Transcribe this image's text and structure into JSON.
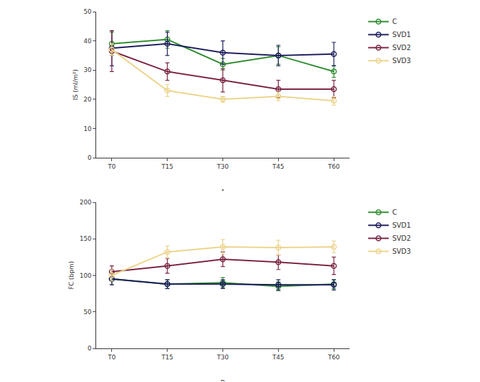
{
  "chart_data": [
    {
      "type": "line",
      "title": "A",
      "y_label": "IS (ml/m²)",
      "categories": [
        "T0",
        "T15",
        "T30",
        "T45",
        "T60"
      ],
      "ylim": [
        0,
        50
      ],
      "yticks": [
        0,
        10,
        20,
        30,
        40,
        50
      ],
      "grid": false,
      "legend": "right",
      "marker": "circle-open",
      "series": [
        {
          "name": "C",
          "color": "#2e8b2e",
          "values": [
            39,
            40.5,
            32,
            35,
            29.5
          ],
          "errors": [
            4,
            3,
            2,
            3,
            2
          ]
        },
        {
          "name": "SVD1",
          "color": "#1c1c5c",
          "values": [
            37.5,
            39,
            36,
            35,
            35.5
          ],
          "errors": [
            6,
            4,
            4,
            3.5,
            4
          ]
        },
        {
          "name": "SVD2",
          "color": "#7a2242",
          "values": [
            36.5,
            29.5,
            26.5,
            23.5,
            23.5
          ],
          "errors": [
            7,
            3,
            4,
            3,
            3
          ]
        },
        {
          "name": "SVD3",
          "color": "#ecd48c",
          "values": [
            37,
            23,
            20,
            21,
            19.5
          ],
          "errors": [
            2,
            2,
            1,
            1.5,
            1.5
          ]
        }
      ]
    },
    {
      "type": "line",
      "title": "B",
      "y_label": "FC (bpm)",
      "categories": [
        "T0",
        "T15",
        "T30",
        "T45",
        "T60"
      ],
      "ylim": [
        0,
        200
      ],
      "yticks": [
        0,
        50,
        100,
        150,
        200
      ],
      "grid": false,
      "legend": "right",
      "marker": "circle-open",
      "series": [
        {
          "name": "C",
          "color": "#2e8b2e",
          "values": [
            95,
            88,
            90,
            85,
            88
          ],
          "errors": [
            8,
            6,
            7,
            6,
            6
          ]
        },
        {
          "name": "SVD1",
          "color": "#1c1c5c",
          "values": [
            95,
            88,
            88,
            87,
            87
          ],
          "errors": [
            8,
            6,
            6,
            7,
            7
          ]
        },
        {
          "name": "SVD2",
          "color": "#7a2242",
          "values": [
            105,
            113,
            122,
            118,
            113
          ],
          "errors": [
            8,
            10,
            10,
            10,
            12
          ]
        },
        {
          "name": "SVD3",
          "color": "#ecd48c",
          "values": [
            100,
            132,
            139,
            138,
            139
          ],
          "errors": [
            8,
            8,
            10,
            10,
            8
          ]
        }
      ]
    }
  ]
}
